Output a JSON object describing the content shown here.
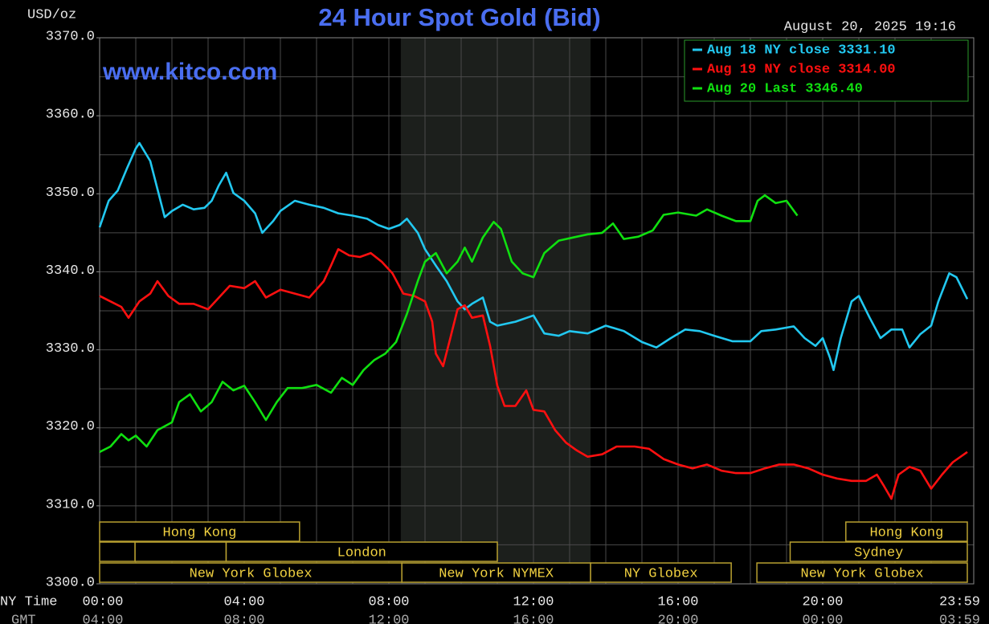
{
  "chart_data": {
    "type": "line",
    "title": "24 Hour Spot Gold (Bid)",
    "y_label": "USD/oz",
    "timestamp": "August 20, 2025 19:16",
    "watermark": "www.kitco.com",
    "x_label": "NY Time",
    "x2_label": "GMT",
    "xlim": [
      0,
      24
    ],
    "xticks": [
      {
        "value": 0,
        "label": "00:00"
      },
      {
        "value": 4,
        "label": "04:00"
      },
      {
        "value": 8,
        "label": "08:00"
      },
      {
        "value": 12,
        "label": "12:00"
      },
      {
        "value": 16,
        "label": "16:00"
      },
      {
        "value": 20,
        "label": "20:00"
      },
      {
        "value": 24,
        "label": "23:59"
      }
    ],
    "gmt_labels": [
      "04:00",
      "08:00",
      "12:00",
      "16:00",
      "20:00",
      "00:00",
      "03:59"
    ],
    "xgrid": [
      1,
      2,
      3,
      4,
      5,
      6,
      7,
      8,
      9,
      10,
      11,
      12,
      13,
      14,
      15,
      16,
      17,
      18,
      19,
      20,
      21,
      22,
      23
    ],
    "ylim": [
      3300,
      3370
    ],
    "yticks": [
      {
        "value": 3300,
        "label": "3300.0"
      },
      {
        "value": 3310,
        "label": "3310.0"
      },
      {
        "value": 3320,
        "label": "3320.0"
      },
      {
        "value": 3330,
        "label": "3330.0"
      },
      {
        "value": 3340,
        "label": "3340.0"
      },
      {
        "value": 3350,
        "label": "3350.0"
      },
      {
        "value": 3360,
        "label": "3360.0"
      },
      {
        "value": 3370,
        "label": "3370.0"
      }
    ],
    "ygrid": [
      3305,
      3310,
      3315,
      3320,
      3325,
      3330,
      3335,
      3340,
      3345,
      3350,
      3355,
      3360,
      3365
    ],
    "grid": true,
    "shaded": [
      8.33,
      13.58
    ],
    "sessions": [
      {
        "label": "Hong Kong",
        "start": 0,
        "end": 5.53,
        "row": 0
      },
      {
        "label": "Hong Kong",
        "start": 20.64,
        "end": 24,
        "row": 0
      },
      {
        "label": null,
        "start": 0,
        "end": 0.98,
        "row": 1
      },
      {
        "label": null,
        "start": 0.98,
        "end": 3.5,
        "row": 1
      },
      {
        "label": "London",
        "start": 3.5,
        "end": 11.0,
        "row": 1
      },
      {
        "label": "Sydney",
        "start": 19.1,
        "end": 24,
        "row": 1
      },
      {
        "label": "New York Globex",
        "start": 0,
        "end": 8.36,
        "row": 2
      },
      {
        "label": "New York NYMEX",
        "start": 8.36,
        "end": 13.58,
        "row": 2
      },
      {
        "label": "NY Globex",
        "start": 13.58,
        "end": 17.47,
        "row": 2
      },
      {
        "label": "New York Globex",
        "start": 18.18,
        "end": 24,
        "row": 2
      }
    ],
    "series": [
      {
        "name": "Aug 18 NY close 3331.10",
        "color": "#22c8f0",
        "x": [
          0,
          0.25,
          0.5,
          0.75,
          1.0,
          1.1,
          1.4,
          1.6,
          1.8,
          2.0,
          2.3,
          2.6,
          2.9,
          3.1,
          3.3,
          3.5,
          3.7,
          4.0,
          4.3,
          4.5,
          4.8,
          5.0,
          5.4,
          5.8,
          6.2,
          6.6,
          7.0,
          7.4,
          7.7,
          8.0,
          8.3,
          8.5,
          8.8,
          9.0,
          9.3,
          9.6,
          9.9,
          10.1,
          10.3,
          10.6,
          10.8,
          11.0,
          11.5,
          12.0,
          12.3,
          12.7,
          13.0,
          13.5,
          14.0,
          14.5,
          15.0,
          15.4,
          15.8,
          16.2,
          16.6,
          17.0,
          17.5,
          18.0,
          18.3,
          18.7,
          19.2,
          19.5,
          19.8,
          20.0,
          20.2,
          20.3,
          20.5,
          20.8,
          21.0,
          21.3,
          21.6,
          21.9,
          22.2,
          22.4,
          22.7,
          23.0,
          23.2,
          23.5,
          23.7,
          24.0
        ],
        "values": [
          3345.7,
          3349.1,
          3350.4,
          3353.2,
          3355.8,
          3356.5,
          3354.2,
          3350.6,
          3347.0,
          3347.8,
          3348.6,
          3348.0,
          3348.2,
          3349.1,
          3351.1,
          3352.7,
          3350.1,
          3349.1,
          3347.5,
          3345.0,
          3346.5,
          3347.8,
          3349.1,
          3348.6,
          3348.2,
          3347.5,
          3347.2,
          3346.8,
          3346.0,
          3345.5,
          3346.0,
          3346.8,
          3345.0,
          3342.9,
          3340.8,
          3338.8,
          3336.2,
          3335.2,
          3335.9,
          3336.7,
          3333.6,
          3333.1,
          3333.6,
          3334.4,
          3332.1,
          3331.8,
          3332.4,
          3332.1,
          3333.1,
          3332.4,
          3331.0,
          3330.3,
          3331.5,
          3332.6,
          3332.4,
          3331.8,
          3331.1,
          3331.1,
          3332.4,
          3332.6,
          3333.0,
          3331.5,
          3330.5,
          3331.5,
          3329.0,
          3327.4,
          3331.5,
          3336.2,
          3336.9,
          3334.1,
          3331.5,
          3332.6,
          3332.6,
          3330.3,
          3332.0,
          3333.1,
          3336.2,
          3339.8,
          3339.3,
          3336.5
        ]
      },
      {
        "name": "Aug 19 NY close 3314.00",
        "color": "#ff1010",
        "x": [
          0,
          0.3,
          0.6,
          0.8,
          1.1,
          1.4,
          1.6,
          1.9,
          2.2,
          2.6,
          3.0,
          3.3,
          3.6,
          4.0,
          4.3,
          4.6,
          5.0,
          5.4,
          5.8,
          6.2,
          6.4,
          6.6,
          6.9,
          7.2,
          7.5,
          7.8,
          8.1,
          8.4,
          8.7,
          9.0,
          9.2,
          9.3,
          9.5,
          9.7,
          9.9,
          10.1,
          10.3,
          10.6,
          10.8,
          11.0,
          11.2,
          11.5,
          11.8,
          12.0,
          12.3,
          12.6,
          12.9,
          13.2,
          13.5,
          13.9,
          14.3,
          14.8,
          15.2,
          15.6,
          16.0,
          16.4,
          16.8,
          17.2,
          17.6,
          18.0,
          18.4,
          18.8,
          19.2,
          19.6,
          20.0,
          20.4,
          20.8,
          21.2,
          21.5,
          21.7,
          21.9,
          22.1,
          22.4,
          22.7,
          23.0,
          23.3,
          23.6,
          24.0
        ],
        "values": [
          3336.9,
          3336.2,
          3335.5,
          3334.1,
          3336.2,
          3337.2,
          3338.8,
          3336.9,
          3335.9,
          3335.9,
          3335.2,
          3336.7,
          3338.2,
          3337.9,
          3338.8,
          3336.7,
          3337.7,
          3337.2,
          3336.7,
          3338.8,
          3340.8,
          3342.9,
          3342.1,
          3341.9,
          3342.4,
          3341.3,
          3339.8,
          3337.2,
          3336.9,
          3336.2,
          3333.6,
          3329.5,
          3327.9,
          3331.5,
          3335.2,
          3335.7,
          3334.1,
          3334.4,
          3330.5,
          3325.4,
          3322.8,
          3322.8,
          3324.8,
          3322.3,
          3322.1,
          3319.7,
          3318.1,
          3317.1,
          3316.3,
          3316.6,
          3317.6,
          3317.6,
          3317.3,
          3316.0,
          3315.3,
          3314.8,
          3315.3,
          3314.5,
          3314.2,
          3314.2,
          3314.8,
          3315.3,
          3315.3,
          3314.8,
          3314.0,
          3313.5,
          3313.2,
          3313.2,
          3314.0,
          3312.5,
          3310.9,
          3314.0,
          3315.0,
          3314.5,
          3312.2,
          3314.0,
          3315.6,
          3316.9
        ]
      },
      {
        "name": "Aug 20 Last 3346.40",
        "color": "#10e010",
        "x": [
          0,
          0.3,
          0.6,
          0.8,
          1.0,
          1.3,
          1.6,
          2.0,
          2.2,
          2.5,
          2.8,
          3.1,
          3.4,
          3.7,
          4.0,
          4.3,
          4.6,
          4.9,
          5.2,
          5.6,
          6.0,
          6.4,
          6.7,
          7.0,
          7.3,
          7.6,
          7.9,
          8.2,
          8.5,
          8.8,
          9.0,
          9.3,
          9.6,
          9.9,
          10.1,
          10.3,
          10.6,
          10.9,
          11.1,
          11.4,
          11.7,
          12.0,
          12.3,
          12.7,
          13.1,
          13.5,
          13.9,
          14.2,
          14.5,
          14.9,
          15.3,
          15.6,
          16.0,
          16.5,
          16.8,
          17.2,
          17.6,
          18.0,
          18.2,
          18.4,
          18.7,
          19.0,
          19.3
        ],
        "values": [
          3316.9,
          3317.6,
          3319.2,
          3318.4,
          3319.0,
          3317.6,
          3319.7,
          3320.7,
          3323.3,
          3324.3,
          3322.1,
          3323.3,
          3325.9,
          3324.8,
          3325.4,
          3323.3,
          3321.0,
          3323.3,
          3325.1,
          3325.1,
          3325.5,
          3324.5,
          3326.4,
          3325.5,
          3327.4,
          3328.7,
          3329.5,
          3331.0,
          3334.6,
          3338.8,
          3341.3,
          3342.4,
          3339.8,
          3341.3,
          3343.1,
          3341.3,
          3344.4,
          3346.4,
          3345.5,
          3341.3,
          3339.8,
          3339.3,
          3342.4,
          3344.0,
          3344.4,
          3344.8,
          3345.0,
          3346.2,
          3344.2,
          3344.5,
          3345.3,
          3347.3,
          3347.6,
          3347.2,
          3348.0,
          3347.2,
          3346.5,
          3346.5,
          3349.1,
          3349.8,
          3348.8,
          3349.1,
          3347.2
        ]
      }
    ]
  }
}
